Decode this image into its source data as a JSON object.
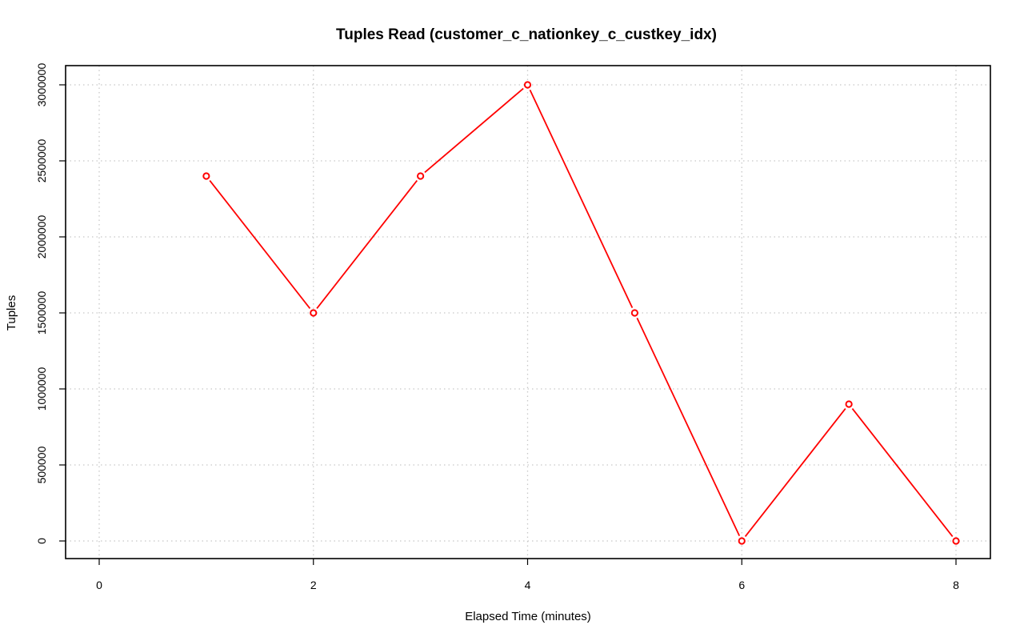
{
  "chart_data": {
    "type": "line",
    "title": "Tuples Read (customer_c_nationkey_c_custkey_idx)",
    "xlabel": "Elapsed Time (minutes)",
    "ylabel": "Tuples",
    "xlim": [
      0,
      8
    ],
    "ylim": [
      0,
      3000000
    ],
    "x_ticks": [
      0,
      2,
      4,
      6,
      8
    ],
    "x_tick_labels": [
      "0",
      "2",
      "4",
      "6",
      "8"
    ],
    "y_ticks": [
      0,
      500000,
      1000000,
      1500000,
      2000000,
      2500000,
      3000000
    ],
    "y_tick_labels": [
      "0",
      "500000",
      "1000000",
      "1500000",
      "2000000",
      "2500000",
      "3000000"
    ],
    "grid": true,
    "series": [
      {
        "color": "#ff0000",
        "x": [
          1,
          2,
          3,
          4,
          5,
          6,
          7,
          8
        ],
        "values": [
          2400000,
          1500000,
          2400000,
          3000000,
          1500000,
          0,
          900000,
          0
        ]
      }
    ]
  }
}
